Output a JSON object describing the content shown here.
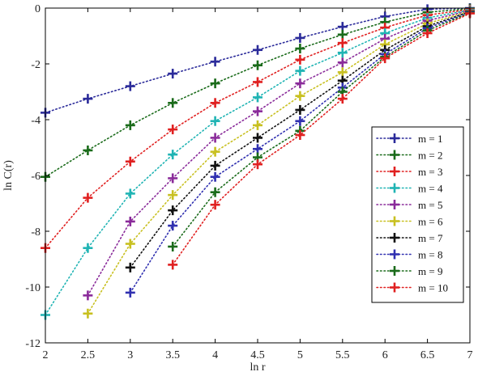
{
  "chart_data": {
    "type": "line",
    "xlabel": "ln r",
    "ylabel": "ln C(r)",
    "xlim": [
      2,
      7
    ],
    "ylim": [
      -12,
      0
    ],
    "xticks": [
      "2",
      "2.5",
      "3",
      "3.5",
      "4",
      "4.5",
      "5",
      "5.5",
      "6",
      "6.5",
      "7"
    ],
    "yticks": [
      "0",
      "-2",
      "-4",
      "-6",
      "-8",
      "-10",
      "-12"
    ],
    "grid": false,
    "legend_position": "right",
    "line_style": "dotted",
    "marker": "plus",
    "series": [
      {
        "name": "m = 1",
        "color": "#2b2b9a",
        "x": [
          2,
          2.5,
          3,
          3.5,
          4,
          4.5,
          5,
          5.5,
          6,
          6.5,
          7
        ],
        "y": [
          -3.75,
          -3.25,
          -2.8,
          -2.35,
          -1.92,
          -1.5,
          -1.07,
          -0.67,
          -0.3,
          -0.04,
          0
        ]
      },
      {
        "name": "m = 2",
        "color": "#1a6b1a",
        "x": [
          2,
          2.5,
          3,
          3.5,
          4,
          4.5,
          5,
          5.5,
          6,
          6.5,
          7
        ],
        "y": [
          -6.05,
          -5.1,
          -4.2,
          -3.4,
          -2.7,
          -2.05,
          -1.45,
          -0.95,
          -0.5,
          -0.15,
          -0.02
        ]
      },
      {
        "name": "m = 3",
        "color": "#e02020",
        "x": [
          2,
          2.5,
          3,
          3.5,
          4,
          4.5,
          5,
          5.5,
          6,
          6.5,
          7
        ],
        "y": [
          -8.6,
          -6.8,
          -5.5,
          -4.35,
          -3.4,
          -2.65,
          -1.85,
          -1.25,
          -0.7,
          -0.25,
          -0.05
        ]
      },
      {
        "name": "m = 4",
        "color": "#20b4b4",
        "x": [
          2,
          2.5,
          3,
          3.5,
          4,
          4.5,
          5,
          5.5,
          6,
          6.5,
          7
        ],
        "y": [
          -11.0,
          -8.6,
          -6.65,
          -5.25,
          -4.05,
          -3.2,
          -2.25,
          -1.6,
          -0.9,
          -0.35,
          -0.07
        ]
      },
      {
        "name": "m = 5",
        "color": "#8a2b9a",
        "x": [
          2.5,
          3,
          3.5,
          4,
          4.5,
          5,
          5.5,
          6,
          6.5,
          7
        ],
        "y": [
          -10.3,
          -7.65,
          -6.1,
          -4.65,
          -3.7,
          -2.7,
          -1.95,
          -1.1,
          -0.45,
          -0.09
        ]
      },
      {
        "name": "m = 6",
        "color": "#c8c020",
        "x": [
          2.5,
          3,
          3.5,
          4,
          4.5,
          5,
          5.5,
          6,
          6.5,
          7
        ],
        "y": [
          -10.95,
          -8.45,
          -6.7,
          -5.15,
          -4.2,
          -3.15,
          -2.3,
          -1.3,
          -0.55,
          -0.11
        ]
      },
      {
        "name": "m = 7",
        "color": "#111111",
        "x": [
          3,
          3.5,
          4,
          4.5,
          5,
          5.5,
          6,
          6.5,
          7
        ],
        "y": [
          -9.3,
          -7.25,
          -5.65,
          -4.65,
          -3.65,
          -2.6,
          -1.5,
          -0.65,
          -0.13
        ]
      },
      {
        "name": "m = 8",
        "color": "#3030b0",
        "x": [
          3,
          3.5,
          4,
          4.5,
          5,
          5.5,
          6,
          6.5,
          7
        ],
        "y": [
          -10.2,
          -7.8,
          -6.05,
          -5.05,
          -4.05,
          -2.85,
          -1.65,
          -0.72,
          -0.15
        ]
      },
      {
        "name": "m = 9",
        "color": "#1a6b1a",
        "x": [
          3.5,
          4,
          4.5,
          5,
          5.5,
          6,
          6.5,
          7
        ],
        "y": [
          -8.55,
          -6.6,
          -5.35,
          -4.4,
          -3.0,
          -1.75,
          -0.8,
          -0.17
        ]
      },
      {
        "name": "m = 10",
        "color": "#e02020",
        "x": [
          3.5,
          4,
          4.5,
          5,
          5.5,
          6,
          6.5,
          7
        ],
        "y": [
          -9.2,
          -7.05,
          -5.6,
          -4.55,
          -3.25,
          -1.8,
          -0.9,
          -0.19
        ]
      }
    ]
  }
}
